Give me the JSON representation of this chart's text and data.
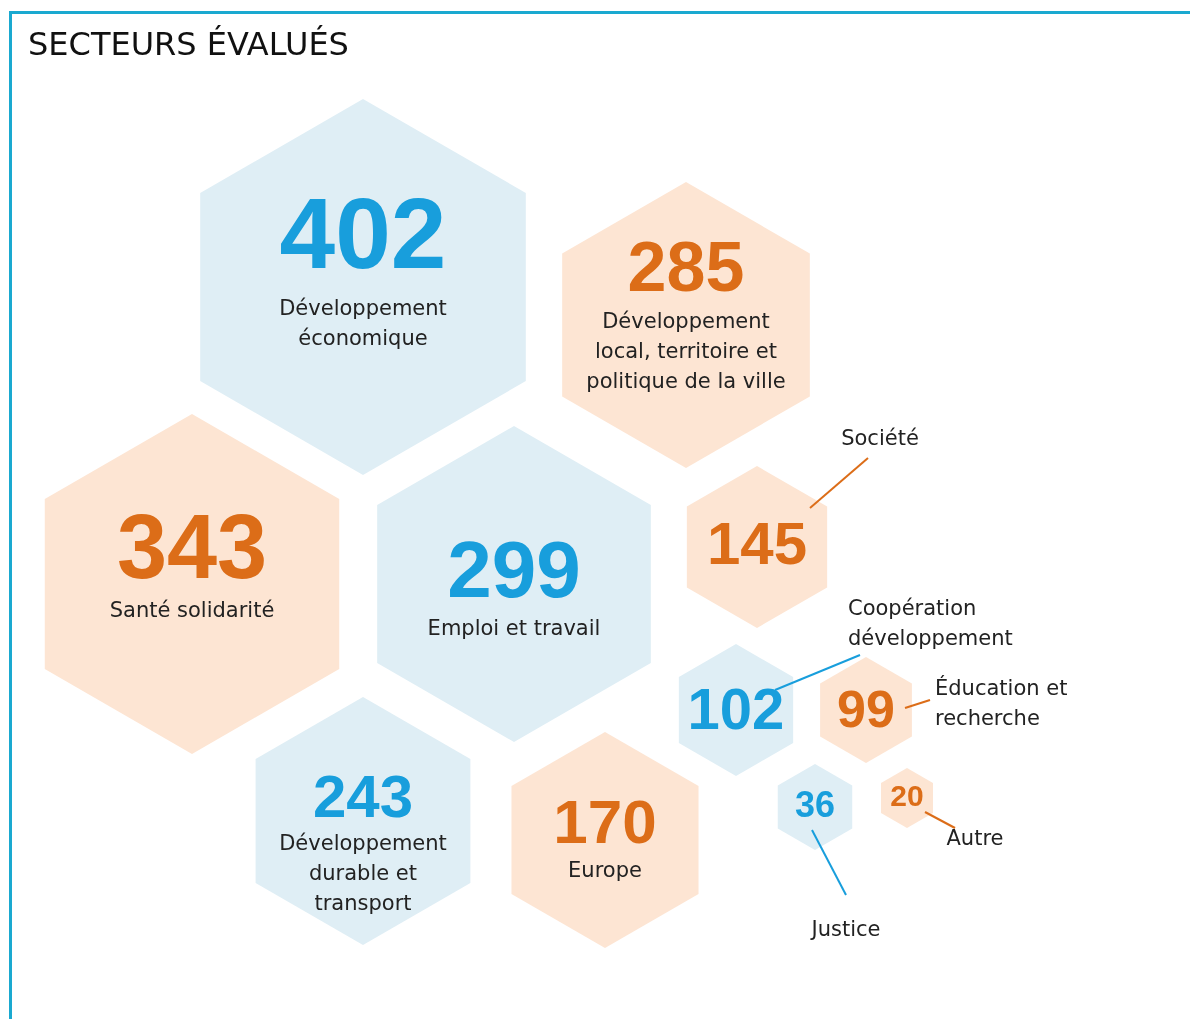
{
  "chart_data": {
    "type": "other",
    "title": "SECTEURS ÉVALUÉS",
    "categories": [
      "Développement économique",
      "Développement local, territoire et politique de la ville",
      "Santé solidarité",
      "Emploi et travail",
      "Société",
      "Coopération développement",
      "Éducation et recherche",
      "Développement durable et transport",
      "Europe",
      "Justice",
      "Autre"
    ],
    "values": [
      402,
      285,
      343,
      299,
      145,
      102,
      99,
      243,
      170,
      36,
      20
    ],
    "colors": [
      "#dfeef5",
      "#fde5d3",
      "#fde5d3",
      "#dfeef5",
      "#fde5d3",
      "#dfeef5",
      "#fde5d3",
      "#dfeef5",
      "#fde5d3",
      "#dfeef5",
      "#fde5d3"
    ],
    "data_labels": true
  }
}
